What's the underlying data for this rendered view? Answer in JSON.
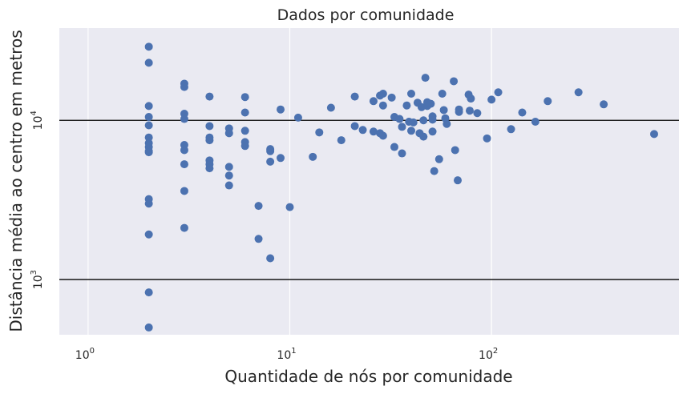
{
  "chart_data": {
    "type": "scatter",
    "title": "Dados por comunidade",
    "xlabel": "Quantidade de nós por comunidade",
    "ylabel": "Distância média ao centro em metros",
    "x_scale": "log",
    "y_scale": "log",
    "xlim": [
      0.72,
      850
    ],
    "ylim": [
      450,
      38000
    ],
    "x_ticks": [
      {
        "value": 1,
        "base": "10",
        "exp": "0"
      },
      {
        "value": 10,
        "base": "10",
        "exp": "1"
      },
      {
        "value": 100,
        "base": "10",
        "exp": "2"
      }
    ],
    "y_ticks": [
      {
        "value": 1000,
        "base": "10",
        "exp": "3"
      },
      {
        "value": 10000,
        "base": "10",
        "exp": "4"
      }
    ],
    "hlines": [
      1000,
      10000
    ],
    "grid": true,
    "background": "#eaeaf2",
    "grid_color": "#ffffff",
    "point_color": "#4c72b0",
    "line_color": "#000000",
    "points": [
      {
        "x": 2,
        "y": 29000
      },
      {
        "x": 2,
        "y": 23000
      },
      {
        "x": 2,
        "y": 12300
      },
      {
        "x": 2,
        "y": 10500
      },
      {
        "x": 2,
        "y": 9300
      },
      {
        "x": 2,
        "y": 7800
      },
      {
        "x": 2,
        "y": 7200
      },
      {
        "x": 2,
        "y": 6800
      },
      {
        "x": 2,
        "y": 6400
      },
      {
        "x": 2,
        "y": 6300
      },
      {
        "x": 2,
        "y": 3200
      },
      {
        "x": 2,
        "y": 3000
      },
      {
        "x": 2,
        "y": 1920
      },
      {
        "x": 2,
        "y": 830
      },
      {
        "x": 2,
        "y": 500
      },
      {
        "x": 3,
        "y": 17000
      },
      {
        "x": 3,
        "y": 16200
      },
      {
        "x": 3,
        "y": 11000
      },
      {
        "x": 3,
        "y": 10200
      },
      {
        "x": 3,
        "y": 7000
      },
      {
        "x": 3,
        "y": 6500
      },
      {
        "x": 3,
        "y": 5300
      },
      {
        "x": 3,
        "y": 3600
      },
      {
        "x": 3,
        "y": 2110
      },
      {
        "x": 4,
        "y": 14100
      },
      {
        "x": 4,
        "y": 9200
      },
      {
        "x": 4,
        "y": 7800
      },
      {
        "x": 4,
        "y": 7500
      },
      {
        "x": 4,
        "y": 5600
      },
      {
        "x": 4,
        "y": 5300
      },
      {
        "x": 4,
        "y": 5000
      },
      {
        "x": 5,
        "y": 8900
      },
      {
        "x": 5,
        "y": 8300
      },
      {
        "x": 5,
        "y": 5100
      },
      {
        "x": 5,
        "y": 4500
      },
      {
        "x": 5,
        "y": 3900
      },
      {
        "x": 6,
        "y": 14000
      },
      {
        "x": 6,
        "y": 11200
      },
      {
        "x": 6,
        "y": 8600
      },
      {
        "x": 6,
        "y": 7300
      },
      {
        "x": 6,
        "y": 6900
      },
      {
        "x": 7,
        "y": 2900
      },
      {
        "x": 7,
        "y": 1800
      },
      {
        "x": 8,
        "y": 6600
      },
      {
        "x": 8,
        "y": 6400
      },
      {
        "x": 8,
        "y": 5500
      },
      {
        "x": 8,
        "y": 1360
      },
      {
        "x": 9,
        "y": 11700
      },
      {
        "x": 9,
        "y": 5800
      },
      {
        "x": 10,
        "y": 2850
      },
      {
        "x": 11,
        "y": 10400
      },
      {
        "x": 13,
        "y": 5900
      },
      {
        "x": 14,
        "y": 8400
      },
      {
        "x": 16,
        "y": 12000
      },
      {
        "x": 18,
        "y": 7500
      },
      {
        "x": 21,
        "y": 14100
      },
      {
        "x": 21,
        "y": 9200
      },
      {
        "x": 23,
        "y": 8700
      },
      {
        "x": 26,
        "y": 13200
      },
      {
        "x": 26,
        "y": 8500
      },
      {
        "x": 28,
        "y": 14300
      },
      {
        "x": 28,
        "y": 8300
      },
      {
        "x": 29,
        "y": 14700
      },
      {
        "x": 29,
        "y": 12400
      },
      {
        "x": 29,
        "y": 8000
      },
      {
        "x": 32,
        "y": 13900
      },
      {
        "x": 33,
        "y": 10500
      },
      {
        "x": 33,
        "y": 6800
      },
      {
        "x": 35,
        "y": 10200
      },
      {
        "x": 36,
        "y": 9100
      },
      {
        "x": 36,
        "y": 6200
      },
      {
        "x": 38,
        "y": 12400
      },
      {
        "x": 39,
        "y": 9800
      },
      {
        "x": 40,
        "y": 14700
      },
      {
        "x": 40,
        "y": 8600
      },
      {
        "x": 41,
        "y": 9700
      },
      {
        "x": 43,
        "y": 12900
      },
      {
        "x": 44,
        "y": 8300
      },
      {
        "x": 45,
        "y": 12100
      },
      {
        "x": 46,
        "y": 10000
      },
      {
        "x": 46,
        "y": 7900
      },
      {
        "x": 47,
        "y": 18500
      },
      {
        "x": 48,
        "y": 13000
      },
      {
        "x": 48,
        "y": 12300
      },
      {
        "x": 50,
        "y": 12700
      },
      {
        "x": 51,
        "y": 10600
      },
      {
        "x": 51,
        "y": 10100
      },
      {
        "x": 51,
        "y": 8500
      },
      {
        "x": 52,
        "y": 4800
      },
      {
        "x": 55,
        "y": 5700
      },
      {
        "x": 57,
        "y": 14700
      },
      {
        "x": 58,
        "y": 11600
      },
      {
        "x": 59,
        "y": 10300
      },
      {
        "x": 60,
        "y": 9500
      },
      {
        "x": 65,
        "y": 17600
      },
      {
        "x": 66,
        "y": 6500
      },
      {
        "x": 68,
        "y": 4200
      },
      {
        "x": 69,
        "y": 11700
      },
      {
        "x": 69,
        "y": 11300
      },
      {
        "x": 77,
        "y": 14500
      },
      {
        "x": 78,
        "y": 11500
      },
      {
        "x": 79,
        "y": 13700
      },
      {
        "x": 85,
        "y": 11100
      },
      {
        "x": 95,
        "y": 7700
      },
      {
        "x": 100,
        "y": 13500
      },
      {
        "x": 108,
        "y": 15000
      },
      {
        "x": 125,
        "y": 8800
      },
      {
        "x": 142,
        "y": 11200
      },
      {
        "x": 165,
        "y": 9800
      },
      {
        "x": 190,
        "y": 13200
      },
      {
        "x": 270,
        "y": 15000
      },
      {
        "x": 360,
        "y": 12600
      },
      {
        "x": 640,
        "y": 8200
      }
    ]
  }
}
